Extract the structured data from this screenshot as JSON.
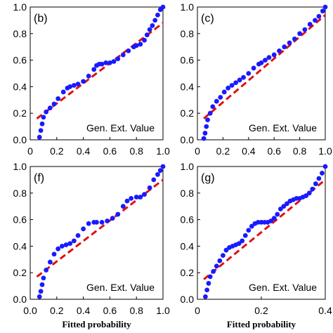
{
  "chart_data": [
    {
      "type": "scatter",
      "panel_label": "(b)",
      "annotation": "Gen. Ext. Value",
      "xlabel": "",
      "xlim": [
        0,
        1
      ],
      "ylim": [
        0,
        1
      ],
      "x_ticks": [
        0,
        0.2,
        0.4,
        0.6,
        0.8,
        1.0
      ],
      "x_tick_labels": [
        "0",
        "0.2",
        "0.4",
        "0.6",
        "0.8",
        "1.0"
      ],
      "y_ticks": [
        0,
        0.2,
        0.4,
        0.6,
        0.8,
        1.0
      ],
      "y_tick_labels": [
        "0.0",
        "0.2",
        "0.4",
        "0.6",
        "0.8",
        "1.0"
      ],
      "fit_line": {
        "x": [
          0.05,
          1.0
        ],
        "y": [
          0.16,
          0.88
        ],
        "color": "#e01010"
      },
      "series": [
        {
          "color": "#1a1aff",
          "x": [
            0.07,
            0.08,
            0.09,
            0.1,
            0.12,
            0.15,
            0.18,
            0.21,
            0.25,
            0.28,
            0.3,
            0.33,
            0.36,
            0.4,
            0.44,
            0.48,
            0.5,
            0.52,
            0.54,
            0.57,
            0.6,
            0.63,
            0.66,
            0.7,
            0.74,
            0.78,
            0.8,
            0.83,
            0.86,
            0.88,
            0.9,
            0.92,
            0.94,
            0.96,
            0.98,
            1.0
          ],
          "y": [
            0.02,
            0.07,
            0.12,
            0.17,
            0.21,
            0.24,
            0.27,
            0.31,
            0.36,
            0.39,
            0.4,
            0.41,
            0.42,
            0.44,
            0.48,
            0.53,
            0.56,
            0.57,
            0.57,
            0.58,
            0.58,
            0.59,
            0.61,
            0.64,
            0.67,
            0.7,
            0.71,
            0.72,
            0.75,
            0.79,
            0.83,
            0.86,
            0.9,
            0.94,
            0.98,
            1.0
          ]
        }
      ]
    },
    {
      "type": "scatter",
      "panel_label": "(c)",
      "annotation": "Gen. Ext. Value",
      "xlabel": "",
      "xlim": [
        0,
        1
      ],
      "ylim": [
        0,
        1
      ],
      "x_ticks": [
        0,
        0.2,
        0.4,
        0.6,
        0.8,
        1.0
      ],
      "x_tick_labels": [
        "0",
        "0.2",
        "0.4",
        "0.6",
        "0.8",
        "1.0"
      ],
      "y_ticks": [
        0,
        0.2,
        0.4,
        0.6,
        0.8,
        1.0
      ],
      "y_tick_labels": [
        "0.0",
        "0.2",
        "0.4",
        "0.6",
        "0.8",
        "1.0"
      ],
      "fit_line": {
        "x": [
          0.05,
          1.0
        ],
        "y": [
          0.16,
          0.94
        ],
        "color": "#e01010"
      },
      "series": [
        {
          "color": "#1a1aff",
          "x": [
            0.05,
            0.06,
            0.07,
            0.08,
            0.1,
            0.12,
            0.15,
            0.18,
            0.21,
            0.24,
            0.27,
            0.3,
            0.33,
            0.36,
            0.4,
            0.44,
            0.48,
            0.5,
            0.53,
            0.56,
            0.6,
            0.64,
            0.68,
            0.72,
            0.76,
            0.8,
            0.84,
            0.88,
            0.92,
            0.95,
            0.98,
            1.0
          ],
          "y": [
            0.01,
            0.05,
            0.1,
            0.15,
            0.2,
            0.25,
            0.29,
            0.32,
            0.36,
            0.39,
            0.41,
            0.43,
            0.45,
            0.47,
            0.5,
            0.54,
            0.57,
            0.58,
            0.6,
            0.62,
            0.64,
            0.67,
            0.7,
            0.73,
            0.76,
            0.8,
            0.83,
            0.87,
            0.9,
            0.93,
            0.97,
            1.0
          ]
        }
      ]
    },
    {
      "type": "scatter",
      "panel_label": "(f)",
      "annotation": "Gen. Ext. Value",
      "xlabel": "Fitted probability",
      "xlim": [
        0,
        1
      ],
      "ylim": [
        0,
        1
      ],
      "x_ticks": [
        0,
        0.2,
        0.4,
        0.6,
        0.8,
        1.0
      ],
      "x_tick_labels": [
        "0.0",
        "0.2",
        "0.4",
        "0.6",
        "0.8",
        "1.0"
      ],
      "y_ticks": [
        0,
        0.2,
        0.4,
        0.6,
        0.8,
        1.0
      ],
      "y_tick_labels": [
        "0.0",
        "0.2",
        "0.4",
        "0.6",
        "0.8",
        "1.0"
      ],
      "fit_line": {
        "x": [
          0.05,
          1.0
        ],
        "y": [
          0.17,
          0.9
        ],
        "color": "#e01010"
      },
      "series": [
        {
          "color": "#1a1aff",
          "x": [
            0.07,
            0.08,
            0.09,
            0.1,
            0.12,
            0.15,
            0.18,
            0.21,
            0.24,
            0.27,
            0.3,
            0.33,
            0.36,
            0.4,
            0.44,
            0.48,
            0.5,
            0.54,
            0.58,
            0.62,
            0.66,
            0.7,
            0.73,
            0.76,
            0.8,
            0.83,
            0.86,
            0.9,
            0.93,
            0.96,
            0.98,
            1.0
          ],
          "y": [
            0.02,
            0.06,
            0.11,
            0.16,
            0.22,
            0.28,
            0.34,
            0.38,
            0.4,
            0.41,
            0.42,
            0.44,
            0.48,
            0.53,
            0.57,
            0.58,
            0.58,
            0.58,
            0.59,
            0.61,
            0.64,
            0.7,
            0.74,
            0.76,
            0.77,
            0.77,
            0.79,
            0.84,
            0.9,
            0.94,
            0.97,
            1.0
          ]
        }
      ]
    },
    {
      "type": "scatter",
      "panel_label": "(g)",
      "annotation": "Gen. Ext. Value",
      "xlabel": "Fitted probability",
      "xlim": [
        0,
        0.4
      ],
      "ylim": [
        0,
        1
      ],
      "x_ticks": [
        0,
        0.2,
        0.4
      ],
      "x_tick_labels": [
        "0",
        "0.2",
        "0.4"
      ],
      "y_ticks": [
        0,
        0.2,
        0.4,
        0.6,
        0.8,
        1.0
      ],
      "y_tick_labels": [
        "0.0",
        "0.2",
        "0.4",
        "0.6",
        "0.8",
        "1.0"
      ],
      "fit_line": {
        "x": [
          0.02,
          0.4
        ],
        "y": [
          0.15,
          0.9
        ],
        "color": "#e01010"
      },
      "series": [
        {
          "color": "#1a1aff",
          "x": [
            0.025,
            0.03,
            0.035,
            0.04,
            0.05,
            0.06,
            0.07,
            0.08,
            0.09,
            0.1,
            0.11,
            0.12,
            0.13,
            0.14,
            0.15,
            0.16,
            0.17,
            0.18,
            0.19,
            0.2,
            0.21,
            0.22,
            0.23,
            0.24,
            0.25,
            0.26,
            0.27,
            0.28,
            0.29,
            0.3,
            0.31,
            0.32,
            0.33,
            0.34,
            0.35,
            0.36,
            0.37,
            0.38,
            0.39,
            0.4
          ],
          "y": [
            0.02,
            0.07,
            0.12,
            0.17,
            0.21,
            0.25,
            0.29,
            0.33,
            0.37,
            0.39,
            0.4,
            0.41,
            0.42,
            0.44,
            0.48,
            0.52,
            0.55,
            0.57,
            0.58,
            0.58,
            0.58,
            0.58,
            0.59,
            0.61,
            0.64,
            0.68,
            0.7,
            0.72,
            0.74,
            0.75,
            0.76,
            0.76,
            0.77,
            0.78,
            0.8,
            0.83,
            0.87,
            0.91,
            0.95,
            1.0
          ]
        }
      ]
    }
  ]
}
